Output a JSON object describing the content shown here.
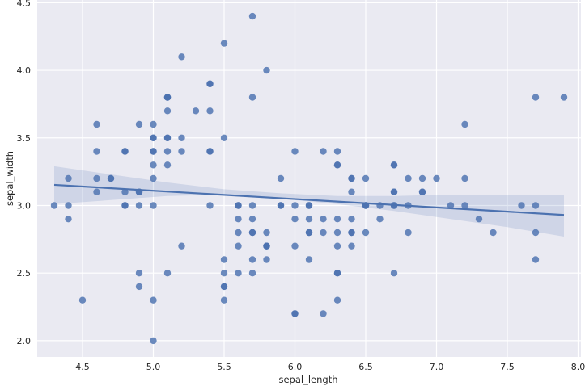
{
  "chart_data": {
    "type": "scatter",
    "title": "",
    "xlabel": "sepal_length",
    "ylabel": "sepal_width",
    "xlim": [
      4.18,
      8.02
    ],
    "ylim": [
      1.88,
      4.52
    ],
    "xticks": [
      4.5,
      5.0,
      5.5,
      6.0,
      6.5,
      7.0,
      7.5,
      8.0
    ],
    "xtick_labels": [
      "4.5",
      "5.0",
      "5.5",
      "6.0",
      "6.5",
      "7.0",
      "7.5",
      "8.0"
    ],
    "yticks": [
      2.0,
      2.5,
      3.0,
      3.5,
      4.0,
      4.5
    ],
    "ytick_labels": [
      "2.0",
      "2.5",
      "3.0",
      "3.5",
      "4.0",
      "4.5"
    ],
    "grid": true,
    "legend": "none",
    "colors": {
      "background": "#eaeaf2",
      "grid": "#ffffff",
      "points": "#4c72b0",
      "band": "#4c72b0"
    },
    "points": [
      [
        4.3,
        3.0
      ],
      [
        4.4,
        2.9
      ],
      [
        4.4,
        3.0
      ],
      [
        4.4,
        3.2
      ],
      [
        4.5,
        2.3
      ],
      [
        4.6,
        3.1
      ],
      [
        4.6,
        3.2
      ],
      [
        4.6,
        3.4
      ],
      [
        4.6,
        3.6
      ],
      [
        4.7,
        3.2
      ],
      [
        4.7,
        3.2
      ],
      [
        4.8,
        3.0
      ],
      [
        4.8,
        3.0
      ],
      [
        4.8,
        3.1
      ],
      [
        4.8,
        3.4
      ],
      [
        4.8,
        3.4
      ],
      [
        4.9,
        2.4
      ],
      [
        4.9,
        2.5
      ],
      [
        4.9,
        3.0
      ],
      [
        4.9,
        3.1
      ],
      [
        4.9,
        3.1
      ],
      [
        4.9,
        3.6
      ],
      [
        5.0,
        2.0
      ],
      [
        5.0,
        2.3
      ],
      [
        5.0,
        3.0
      ],
      [
        5.0,
        3.2
      ],
      [
        5.0,
        3.3
      ],
      [
        5.0,
        3.4
      ],
      [
        5.0,
        3.4
      ],
      [
        5.0,
        3.5
      ],
      [
        5.0,
        3.5
      ],
      [
        5.0,
        3.6
      ],
      [
        5.1,
        2.5
      ],
      [
        5.1,
        3.3
      ],
      [
        5.1,
        3.4
      ],
      [
        5.1,
        3.5
      ],
      [
        5.1,
        3.5
      ],
      [
        5.1,
        3.7
      ],
      [
        5.1,
        3.8
      ],
      [
        5.1,
        3.8
      ],
      [
        5.1,
        3.8
      ],
      [
        5.2,
        2.7
      ],
      [
        5.2,
        3.4
      ],
      [
        5.2,
        3.5
      ],
      [
        5.2,
        4.1
      ],
      [
        5.3,
        3.7
      ],
      [
        5.4,
        3.0
      ],
      [
        5.4,
        3.4
      ],
      [
        5.4,
        3.4
      ],
      [
        5.4,
        3.7
      ],
      [
        5.4,
        3.9
      ],
      [
        5.4,
        3.9
      ],
      [
        5.5,
        2.3
      ],
      [
        5.5,
        2.4
      ],
      [
        5.5,
        2.4
      ],
      [
        5.5,
        2.5
      ],
      [
        5.5,
        2.6
      ],
      [
        5.5,
        3.5
      ],
      [
        5.5,
        4.2
      ],
      [
        5.6,
        2.5
      ],
      [
        5.6,
        2.7
      ],
      [
        5.6,
        2.8
      ],
      [
        5.6,
        2.9
      ],
      [
        5.6,
        3.0
      ],
      [
        5.6,
        3.0
      ],
      [
        5.7,
        2.5
      ],
      [
        5.7,
        2.6
      ],
      [
        5.7,
        2.8
      ],
      [
        5.7,
        2.8
      ],
      [
        5.7,
        2.9
      ],
      [
        5.7,
        3.0
      ],
      [
        5.7,
        3.8
      ],
      [
        5.7,
        4.4
      ],
      [
        5.8,
        2.6
      ],
      [
        5.8,
        2.7
      ],
      [
        5.8,
        2.7
      ],
      [
        5.8,
        2.7
      ],
      [
        5.8,
        2.8
      ],
      [
        5.8,
        4.0
      ],
      [
        5.9,
        3.0
      ],
      [
        5.9,
        3.0
      ],
      [
        5.9,
        3.2
      ],
      [
        6.0,
        2.2
      ],
      [
        6.0,
        2.2
      ],
      [
        6.0,
        2.7
      ],
      [
        6.0,
        2.9
      ],
      [
        6.0,
        3.0
      ],
      [
        6.0,
        3.4
      ],
      [
        6.1,
        2.6
      ],
      [
        6.1,
        2.8
      ],
      [
        6.1,
        2.8
      ],
      [
        6.1,
        2.9
      ],
      [
        6.1,
        3.0
      ],
      [
        6.1,
        3.0
      ],
      [
        6.2,
        2.2
      ],
      [
        6.2,
        2.8
      ],
      [
        6.2,
        2.9
      ],
      [
        6.2,
        3.4
      ],
      [
        6.3,
        2.3
      ],
      [
        6.3,
        2.5
      ],
      [
        6.3,
        2.5
      ],
      [
        6.3,
        2.7
      ],
      [
        6.3,
        2.8
      ],
      [
        6.3,
        2.9
      ],
      [
        6.3,
        3.3
      ],
      [
        6.3,
        3.3
      ],
      [
        6.3,
        3.4
      ],
      [
        6.4,
        2.7
      ],
      [
        6.4,
        2.8
      ],
      [
        6.4,
        2.8
      ],
      [
        6.4,
        2.9
      ],
      [
        6.4,
        3.1
      ],
      [
        6.4,
        3.2
      ],
      [
        6.4,
        3.2
      ],
      [
        6.5,
        2.8
      ],
      [
        6.5,
        3.0
      ],
      [
        6.5,
        3.0
      ],
      [
        6.5,
        3.0
      ],
      [
        6.5,
        3.2
      ],
      [
        6.6,
        2.9
      ],
      [
        6.6,
        3.0
      ],
      [
        6.7,
        2.5
      ],
      [
        6.7,
        3.0
      ],
      [
        6.7,
        3.0
      ],
      [
        6.7,
        3.1
      ],
      [
        6.7,
        3.1
      ],
      [
        6.7,
        3.3
      ],
      [
        6.7,
        3.3
      ],
      [
        6.8,
        2.8
      ],
      [
        6.8,
        3.0
      ],
      [
        6.8,
        3.2
      ],
      [
        6.9,
        3.1
      ],
      [
        6.9,
        3.1
      ],
      [
        6.9,
        3.2
      ],
      [
        7.0,
        3.2
      ],
      [
        7.1,
        3.0
      ],
      [
        7.2,
        3.0
      ],
      [
        7.2,
        3.2
      ],
      [
        7.2,
        3.6
      ],
      [
        7.3,
        2.9
      ],
      [
        7.4,
        2.8
      ],
      [
        7.6,
        3.0
      ],
      [
        7.7,
        2.6
      ],
      [
        7.7,
        2.8
      ],
      [
        7.7,
        3.0
      ],
      [
        7.7,
        3.8
      ],
      [
        7.9,
        3.8
      ]
    ],
    "regression": {
      "x_range": [
        4.3,
        7.9
      ],
      "intercept": 3.4189,
      "slope": -0.0619,
      "band_lower": [
        3.01,
        3.04,
        3.07,
        3.08,
        3.05,
        3.01,
        2.96,
        2.9,
        2.84,
        2.77
      ],
      "band_upper": [
        3.29,
        3.23,
        3.17,
        3.12,
        3.09,
        3.07,
        3.07,
        3.08,
        3.08,
        3.08
      ]
    }
  }
}
